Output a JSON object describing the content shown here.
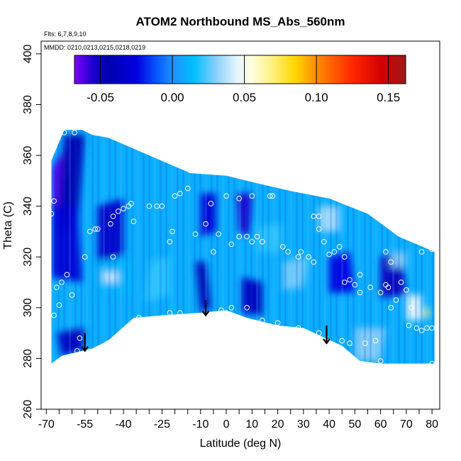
{
  "chart_data": {
    "type": "heatmap",
    "title": "ATOM2 Northbound MS_Abs_560nm",
    "annotations": [
      "Flts: 6,7,8,9,10",
      "MMDD: 0210,0213,0215,0218,0219"
    ],
    "xlabel": "Latitude (deg N)",
    "ylabel": "Theta (C)",
    "xlim": [
      -72,
      83
    ],
    "ylim": [
      260,
      405
    ],
    "x_ticks_labeled": [
      -70,
      -55,
      -40,
      -25,
      -10,
      0,
      10,
      20,
      30,
      40,
      50,
      60,
      70,
      80
    ],
    "x_tick_labels": [
      "-70",
      "-55",
      "-40",
      "-25",
      "-10",
      "0",
      "10",
      "20",
      "30",
      "40",
      "50",
      "60",
      "70",
      "80"
    ],
    "x_ticks_minor": [
      -65,
      -60,
      -50,
      -45,
      -35,
      -30,
      -20,
      -15,
      -5,
      5,
      15,
      25,
      35,
      45,
      55,
      65,
      75
    ],
    "y_ticks": [
      260,
      280,
      300,
      320,
      340,
      360,
      380,
      400
    ],
    "y_tick_labels": [
      "260",
      "280",
      "300",
      "320",
      "340",
      "360",
      "380",
      "400"
    ],
    "grid": false,
    "colorbar": {
      "range": [
        -0.068,
        0.162
      ],
      "ticks": [
        -0.05,
        0.0,
        0.05,
        0.1,
        0.15
      ],
      "tick_labels": [
        "-0.05",
        "0.00",
        "0.05",
        "0.10",
        "0.15"
      ],
      "colors": [
        [
          -0.068,
          "#7f00ff"
        ],
        [
          -0.055,
          "#1a00cc"
        ],
        [
          -0.045,
          "#0000b0"
        ],
        [
          -0.025,
          "#0000e0"
        ],
        [
          -0.01,
          "#0a5cff"
        ],
        [
          0.0,
          "#1e90ff"
        ],
        [
          0.015,
          "#00bfff"
        ],
        [
          0.03,
          "#87cefa"
        ],
        [
          0.045,
          "#e6f5ff"
        ],
        [
          0.055,
          "#ffffe0"
        ],
        [
          0.07,
          "#fff07a"
        ],
        [
          0.085,
          "#ffd700"
        ],
        [
          0.1,
          "#ff8c00"
        ],
        [
          0.125,
          "#ff2800"
        ],
        [
          0.145,
          "#d40000"
        ],
        [
          0.162,
          "#a01818"
        ]
      ]
    },
    "surface_boundary": [
      [
        -68,
        278
      ],
      [
        -64,
        281
      ],
      [
        -52,
        284
      ],
      [
        -46,
        287
      ],
      [
        -36,
        296
      ],
      [
        -25,
        297
      ],
      [
        -10,
        298
      ],
      [
        0,
        299
      ],
      [
        8,
        296
      ],
      [
        20,
        293
      ],
      [
        30,
        292
      ],
      [
        45,
        285
      ],
      [
        52,
        279
      ],
      [
        60,
        278
      ],
      [
        81,
        278
      ]
    ],
    "top_boundary": [
      [
        -68,
        358
      ],
      [
        -63,
        370
      ],
      [
        -56,
        370
      ],
      [
        -52,
        368
      ],
      [
        -46,
        367
      ],
      [
        -30,
        360
      ],
      [
        -14,
        353
      ],
      [
        0,
        352
      ],
      [
        12,
        349
      ],
      [
        25,
        346
      ],
      [
        40,
        343
      ],
      [
        55,
        337
      ],
      [
        67,
        328
      ],
      [
        81,
        322
      ]
    ],
    "regions": [
      {
        "c": -0.062,
        "p": [
          [
            -68,
            355
          ],
          [
            -63,
            362
          ],
          [
            -62,
            340
          ],
          [
            -68,
            338
          ]
        ]
      },
      {
        "c": -0.045,
        "p": [
          [
            -63,
            368
          ],
          [
            -55,
            368
          ],
          [
            -58,
            330
          ],
          [
            -66,
            330
          ]
        ]
      },
      {
        "c": -0.03,
        "p": [
          [
            -68,
            340
          ],
          [
            -58,
            340
          ],
          [
            -56,
            310
          ],
          [
            -68,
            312
          ]
        ]
      },
      {
        "c": -0.04,
        "p": [
          [
            -66,
            290
          ],
          [
            -55,
            292
          ],
          [
            -56,
            283
          ],
          [
            -64,
            281
          ]
        ]
      },
      {
        "c": -0.035,
        "p": [
          [
            -50,
            340
          ],
          [
            -40,
            343
          ],
          [
            -40,
            320
          ],
          [
            -50,
            318
          ]
        ]
      },
      {
        "c": 0.012,
        "p": [
          [
            -50,
            318
          ],
          [
            -38,
            320
          ],
          [
            -36,
            306
          ],
          [
            -50,
            306
          ]
        ]
      },
      {
        "c": 0.04,
        "p": [
          [
            -48,
            314
          ],
          [
            -42,
            314
          ],
          [
            -42,
            310
          ],
          [
            -48,
            310
          ]
        ]
      },
      {
        "c": 0.02,
        "p": [
          [
            -30,
            318
          ],
          [
            -22,
            320
          ],
          [
            -22,
            305
          ],
          [
            -32,
            302
          ]
        ]
      },
      {
        "c": -0.045,
        "p": [
          [
            -12,
            318
          ],
          [
            -8,
            318
          ],
          [
            -6,
            300
          ],
          [
            -10,
            298
          ]
        ]
      },
      {
        "c": -0.03,
        "p": [
          [
            -10,
            345
          ],
          [
            -4,
            345
          ],
          [
            -4,
            330
          ],
          [
            -10,
            328
          ]
        ]
      },
      {
        "c": -0.055,
        "p": [
          [
            4,
            345
          ],
          [
            10,
            345
          ],
          [
            9,
            328
          ],
          [
            5,
            330
          ]
        ]
      },
      {
        "c": -0.04,
        "p": [
          [
            6,
            312
          ],
          [
            14,
            310
          ],
          [
            14,
            297
          ],
          [
            6,
            298
          ]
        ]
      },
      {
        "c": 0.02,
        "p": [
          [
            12,
            332
          ],
          [
            22,
            333
          ],
          [
            22,
            322
          ],
          [
            12,
            322
          ]
        ]
      },
      {
        "c": 0.028,
        "p": [
          [
            22,
            318
          ],
          [
            32,
            320
          ],
          [
            30,
            308
          ],
          [
            22,
            307
          ]
        ]
      },
      {
        "c": 0.035,
        "p": [
          [
            36,
            340
          ],
          [
            44,
            340
          ],
          [
            44,
            330
          ],
          [
            36,
            330
          ]
        ]
      },
      {
        "c": -0.025,
        "p": [
          [
            40,
            320
          ],
          [
            48,
            322
          ],
          [
            50,
            306
          ],
          [
            40,
            306
          ]
        ]
      },
      {
        "c": -0.05,
        "p": [
          [
            60,
            320
          ],
          [
            68,
            322
          ],
          [
            70,
            305
          ],
          [
            60,
            304
          ]
        ]
      },
      {
        "c": 0.045,
        "p": [
          [
            70,
            305
          ],
          [
            76,
            305
          ],
          [
            76,
            295
          ],
          [
            70,
            295
          ]
        ]
      },
      {
        "c": 0.07,
        "p": [
          [
            77,
            300
          ],
          [
            79,
            300
          ],
          [
            79,
            296
          ],
          [
            77,
            296
          ]
        ]
      },
      {
        "c": 0.03,
        "p": [
          [
            50,
            292
          ],
          [
            62,
            292
          ],
          [
            60,
            279
          ],
          [
            50,
            279
          ]
        ]
      },
      {
        "c": 0.03,
        "p": [
          [
            64,
            322
          ],
          [
            70,
            322
          ],
          [
            70,
            316
          ],
          [
            64,
            316
          ]
        ]
      }
    ],
    "flight_points": [
      [
        -67,
        342
      ],
      [
        -68,
        337
      ],
      [
        -63,
        369
      ],
      [
        -59,
        369
      ],
      [
        -67,
        297
      ],
      [
        -66,
        308
      ],
      [
        -64,
        310
      ],
      [
        -65,
        301
      ],
      [
        -62,
        313
      ],
      [
        -60,
        305
      ],
      [
        -57,
        288
      ],
      [
        -58,
        283
      ],
      [
        -60,
        281
      ],
      [
        -66,
        278
      ],
      [
        -55,
        320
      ],
      [
        -53,
        330
      ],
      [
        -51,
        331
      ],
      [
        -50,
        331
      ],
      [
        -45,
        333
      ],
      [
        -44,
        336
      ],
      [
        -42,
        338
      ],
      [
        -40,
        339
      ],
      [
        -38,
        340
      ],
      [
        -37,
        341
      ],
      [
        -44,
        320
      ],
      [
        -46,
        286
      ],
      [
        -34,
        296
      ],
      [
        -30,
        340
      ],
      [
        -27,
        340
      ],
      [
        -25,
        340
      ],
      [
        -22,
        326
      ],
      [
        -21,
        330
      ],
      [
        -20,
        344
      ],
      [
        -18,
        345
      ],
      [
        -15,
        347
      ],
      [
        -8,
        333
      ],
      [
        -6,
        341
      ],
      [
        -12,
        329
      ],
      [
        -5,
        322
      ],
      [
        -3,
        329
      ],
      [
        0,
        344
      ],
      [
        2,
        325
      ],
      [
        5,
        328
      ],
      [
        8,
        328
      ],
      [
        10,
        326
      ],
      [
        12,
        328
      ],
      [
        14,
        326
      ],
      [
        17,
        344
      ],
      [
        18,
        344
      ],
      [
        5,
        343
      ],
      [
        10,
        344
      ],
      [
        -2,
        299
      ],
      [
        2,
        300
      ],
      [
        -22,
        298
      ],
      [
        8,
        300
      ],
      [
        14,
        295
      ],
      [
        20,
        294
      ],
      [
        24,
        322
      ],
      [
        22,
        324
      ],
      [
        28,
        320
      ],
      [
        29,
        322
      ],
      [
        32,
        320
      ],
      [
        34,
        318
      ],
      [
        36,
        336
      ],
      [
        36,
        331
      ],
      [
        34,
        336
      ],
      [
        38,
        326
      ],
      [
        40,
        321
      ],
      [
        42,
        322
      ],
      [
        44,
        324
      ],
      [
        46,
        320
      ],
      [
        46,
        310
      ],
      [
        48,
        311
      ],
      [
        50,
        309
      ],
      [
        52,
        306
      ],
      [
        52,
        313
      ],
      [
        56,
        308
      ],
      [
        60,
        306
      ],
      [
        62,
        309
      ],
      [
        63,
        308
      ],
      [
        62,
        322
      ],
      [
        64,
        318
      ],
      [
        64,
        300
      ],
      [
        66,
        303
      ],
      [
        68,
        310
      ],
      [
        70,
        307
      ],
      [
        72,
        300
      ],
      [
        71,
        293
      ],
      [
        74,
        292
      ],
      [
        76,
        291
      ],
      [
        78,
        292
      ],
      [
        80,
        292
      ],
      [
        80,
        278
      ],
      [
        80,
        323
      ],
      [
        76,
        322
      ],
      [
        28,
        292
      ],
      [
        36,
        290
      ],
      [
        45,
        287
      ],
      [
        54,
        286
      ],
      [
        60,
        279
      ],
      [
        -46,
        286
      ],
      [
        -18,
        298
      ],
      [
        48,
        286
      ],
      [
        58,
        287
      ],
      [
        -36,
        334
      ]
    ],
    "arrows": [
      {
        "x": -55,
        "y1": 290,
        "y2": 283
      },
      {
        "x": -8,
        "y1": 303,
        "y2": 297
      },
      {
        "x": 39,
        "y1": 293,
        "y2": 286
      }
    ],
    "base_value": 0.01
  }
}
